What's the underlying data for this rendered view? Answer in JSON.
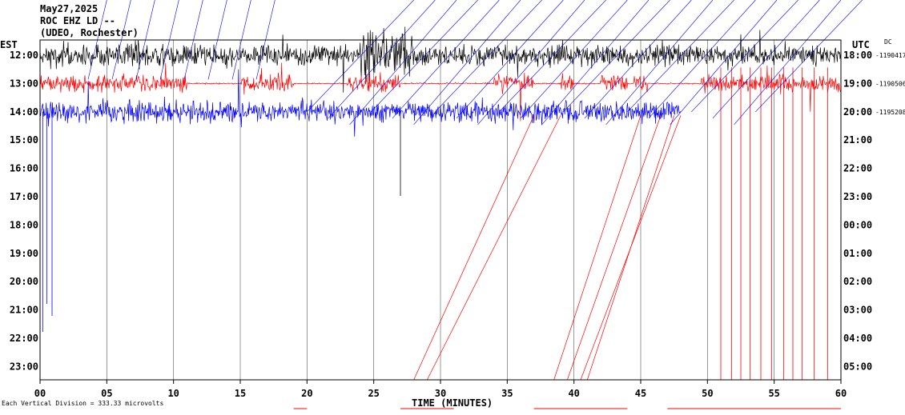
{
  "header": {
    "date": "May27,2025",
    "station": "ROC EHZ LD --",
    "network": "(UDEO, Rochester)"
  },
  "left_axis_title": "EST",
  "right_axis_title": "UTC",
  "dc_label": "DC",
  "footer": "Each Vertical Division = 333.33 microvolts",
  "chart_data": {
    "type": "helicorder",
    "xlabel": "TIME (MINUTES)",
    "x_ticks": [
      "00",
      "05",
      "10",
      "15",
      "20",
      "25",
      "30",
      "35",
      "40",
      "45",
      "50",
      "55",
      "60"
    ],
    "xlim": [
      0,
      60
    ],
    "left_ticks": [
      "12:00",
      "13:00",
      "14:00",
      "15:00",
      "16:00",
      "17:00",
      "18:00",
      "19:00",
      "20:00",
      "21:00",
      "22:00",
      "23:00"
    ],
    "right_ticks": [
      "18:00",
      "19:00",
      "20:00",
      "21:00",
      "22:00",
      "23:00",
      "00:00",
      "01:00",
      "02:00",
      "03:00",
      "04:00",
      "05:00"
    ],
    "dc_offsets": [
      "-1190417",
      "-1190506",
      "-1195208"
    ],
    "trace_colors": [
      "#000000",
      "#ff0000",
      "#0000ff"
    ],
    "series": [
      {
        "hour": "12:00",
        "color": "#000000",
        "end_minute": 60
      },
      {
        "hour": "13:00",
        "color": "#ff0000",
        "end_minute": 60
      },
      {
        "hour": "14:00",
        "color": "#0000ff",
        "end_minute": 48
      }
    ],
    "grid": "vertical lines every 5 minutes"
  }
}
